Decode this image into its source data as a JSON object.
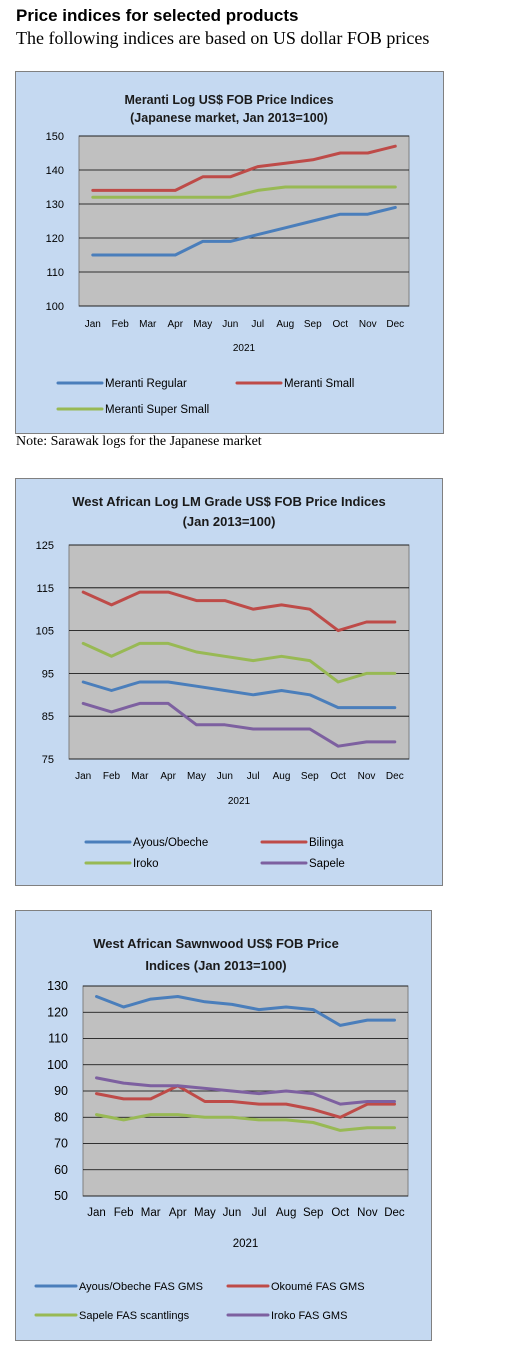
{
  "page": {
    "heading": "Price indices for selected products",
    "subheading": "The following indices are based on US dollar FOB prices",
    "note": "Note: Sarawak logs for the Japanese market"
  },
  "chart_data": [
    {
      "type": "line",
      "title": [
        "Meranti Log US$ FOB Price Indices",
        "(Japanese market, Jan 2013=100)"
      ],
      "xlabel": "2021",
      "categories": [
        "Jan",
        "Feb",
        "Mar",
        "Apr",
        "May",
        "Jun",
        "Jul",
        "Aug",
        "Sep",
        "Oct",
        "Nov",
        "Dec"
      ],
      "ylim": [
        100,
        150
      ],
      "yticks": [
        100,
        110,
        120,
        130,
        140,
        150
      ],
      "series": [
        {
          "name": "Meranti Regular",
          "color": "#4a7ebb",
          "values": [
            115,
            115,
            115,
            115,
            119,
            119,
            121,
            123,
            125,
            127,
            127,
            129
          ]
        },
        {
          "name": "Meranti Small",
          "color": "#be4b48",
          "values": [
            134,
            134,
            134,
            134,
            138,
            138,
            141,
            142,
            143,
            145,
            145,
            147
          ]
        },
        {
          "name": "Meranti Super Small",
          "color": "#98b954",
          "values": [
            132,
            132,
            132,
            132,
            132,
            132,
            134,
            135,
            135,
            135,
            135,
            135
          ]
        }
      ]
    },
    {
      "type": "line",
      "title": [
        "West African Log LM Grade US$ FOB Price Indices",
        "(Jan 2013=100)"
      ],
      "xlabel": "2021",
      "categories": [
        "Jan",
        "Feb",
        "Mar",
        "Apr",
        "May",
        "Jun",
        "Jul",
        "Aug",
        "Sep",
        "Oct",
        "Nov",
        "Dec"
      ],
      "ylim": [
        75,
        125
      ],
      "yticks": [
        75,
        85,
        95,
        105,
        115,
        125
      ],
      "series": [
        {
          "name": "Ayous/Obeche",
          "color": "#4a7ebb",
          "values": [
            93,
            91,
            93,
            93,
            92,
            91,
            90,
            91,
            90,
            87,
            87,
            87
          ]
        },
        {
          "name": "Bilinga",
          "color": "#be4b48",
          "values": [
            114,
            111,
            114,
            114,
            112,
            112,
            110,
            111,
            110,
            105,
            107,
            107
          ]
        },
        {
          "name": "Iroko",
          "color": "#98b954",
          "values": [
            102,
            99,
            102,
            102,
            100,
            99,
            98,
            99,
            98,
            93,
            95,
            95
          ]
        },
        {
          "name": "Sapele",
          "color": "#7d60a0",
          "values": [
            88,
            86,
            88,
            88,
            83,
            83,
            82,
            82,
            82,
            78,
            79,
            79
          ]
        }
      ]
    },
    {
      "type": "line",
      "title": [
        "West African Sawnwood US$ FOB Price",
        "Indices (Jan 2013=100)"
      ],
      "xlabel": "2021",
      "categories": [
        "Jan",
        "Feb",
        "Mar",
        "Apr",
        "May",
        "Jun",
        "Jul",
        "Aug",
        "Sep",
        "Oct",
        "Nov",
        "Dec"
      ],
      "ylim": [
        50,
        130
      ],
      "yticks": [
        50,
        60,
        70,
        80,
        90,
        100,
        110,
        120,
        130
      ],
      "series": [
        {
          "name": "Ayous/Obeche FAS GMS",
          "color": "#4a7ebb",
          "values": [
            126,
            122,
            125,
            126,
            124,
            123,
            121,
            122,
            121,
            115,
            117,
            117
          ]
        },
        {
          "name": "Okoumé FAS GMS",
          "color": "#be4b48",
          "values": [
            89,
            87,
            87,
            92,
            86,
            86,
            85,
            85,
            83,
            80,
            85,
            85
          ]
        },
        {
          "name": "Sapele FAS scantlings",
          "color": "#98b954",
          "values": [
            81,
            79,
            81,
            81,
            80,
            80,
            79,
            79,
            78,
            75,
            76,
            76
          ]
        },
        {
          "name": "Iroko FAS GMS",
          "color": "#7d60a0",
          "values": [
            95,
            93,
            92,
            92,
            91,
            90,
            89,
            90,
            89,
            85,
            86,
            86
          ]
        }
      ]
    }
  ]
}
